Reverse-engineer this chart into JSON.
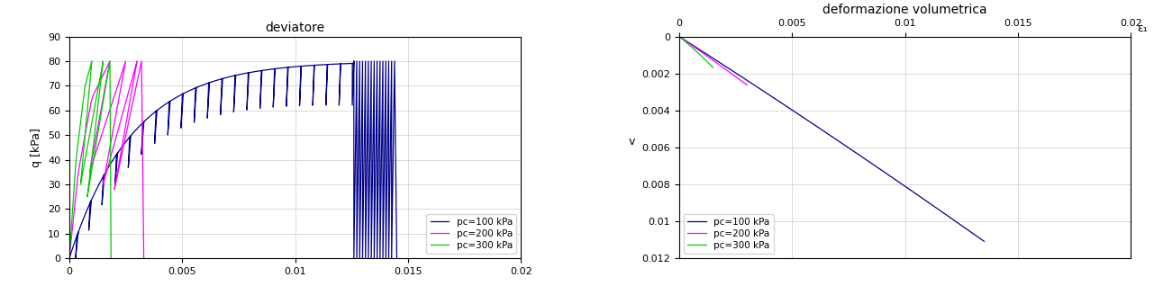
{
  "title_left": "deviatore",
  "title_right": "deformazione volumetrica",
  "ylabel_left": "q [kPa]",
  "ylabel_right": "v",
  "xlabel_right": "ε₁",
  "xlim": [
    0,
    0.02
  ],
  "ylim_left": [
    0,
    90
  ],
  "ylim_right": [
    0,
    0.012
  ],
  "xticks": [
    0,
    0.005,
    0.01,
    0.015,
    0.02
  ],
  "yticks_left": [
    0,
    10,
    20,
    30,
    40,
    50,
    60,
    70,
    80,
    90
  ],
  "yticks_right": [
    0,
    0.002,
    0.004,
    0.006,
    0.008,
    0.01,
    0.012
  ],
  "colors": {
    "pc100": "#00008B",
    "pc200": "#FF00FF",
    "pc300": "#00CC00"
  },
  "legend_labels": [
    "pc=100 kPa",
    "pc=200 kPa",
    "pc=300 kPa"
  ],
  "grid_color": "#CCCCCC",
  "background_color": "#FFFFFF",
  "figsize": [
    12.81,
    3.38
  ],
  "dpi": 100
}
